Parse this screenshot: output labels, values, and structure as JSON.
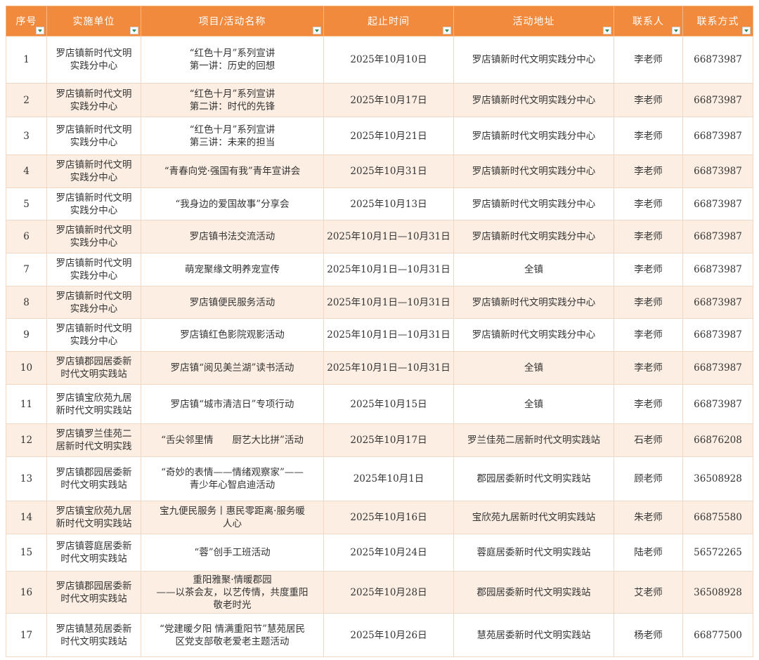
{
  "colors": {
    "header": "#F28A3E",
    "stripe": "#FCEEE3",
    "filter_arrow": "#2E8B57"
  },
  "columns": [
    "序号",
    "实施单位",
    "项目/活动名称",
    "起止时间",
    "活动地址",
    "联系人",
    "联系方式"
  ],
  "rows": [
    {
      "no": "1",
      "unit": "罗店镇新时代文明\n实践分中心",
      "name": "“红色十月”系列宣讲\n第一讲：历史的回想",
      "time": "2025年10月10日",
      "addr": "罗店镇新时代文明实践分中心",
      "contact": "李老师",
      "phone": "66873987"
    },
    {
      "no": "2",
      "unit": "罗店镇新时代文明\n实践分中心",
      "name": "“红色十月”系列宣讲\n第二讲：时代的先锋",
      "time": "2025年10月17日",
      "addr": "罗店镇新时代文明实践分中心",
      "contact": "李老师",
      "phone": "66873987"
    },
    {
      "no": "3",
      "unit": "罗店镇新时代文明\n实践分中心",
      "name": "“红色十月”系列宣讲\n第三讲：未来的担当",
      "time": "2025年10月21日",
      "addr": "罗店镇新时代文明实践分中心",
      "contact": "李老师",
      "phone": "66873987"
    },
    {
      "no": "4",
      "unit": "罗店镇新时代文明\n实践分中心",
      "name": "“青春向党·强国有我”青年宣讲会",
      "time": "2025年10月31日",
      "addr": "罗店镇新时代文明实践分中心",
      "contact": "李老师",
      "phone": "66873987"
    },
    {
      "no": "5",
      "unit": "罗店镇新时代文明\n实践分中心",
      "name": "“我身边的爱国故事”分享会",
      "time": "2025年10月13日",
      "addr": "罗店镇新时代文明实践分中心",
      "contact": "李老师",
      "phone": "66873987"
    },
    {
      "no": "6",
      "unit": "罗店镇新时代文明\n实践分中心",
      "name": "罗店镇书法交流活动",
      "time": "2025年10月1日—10月31日",
      "addr": "罗店镇新时代文明实践分中心",
      "contact": "李老师",
      "phone": "66873987"
    },
    {
      "no": "7",
      "unit": "罗店镇新时代文明\n实践分中心",
      "name": "萌宠聚缘文明养宠宣传",
      "time": "2025年10月1日—10月31日",
      "addr": "全镇",
      "contact": "李老师",
      "phone": "66873987"
    },
    {
      "no": "8",
      "unit": "罗店镇新时代文明\n实践分中心",
      "name": "罗店镇便民服务活动",
      "time": "2025年10月1日—10月31日",
      "addr": "罗店镇新时代文明实践分中心",
      "contact": "李老师",
      "phone": "66873987"
    },
    {
      "no": "9",
      "unit": "罗店镇新时代文明\n实践分中心",
      "name": "罗店镇红色影院观影活动",
      "time": "2025年10月1日—10月31日",
      "addr": "罗店镇新时代文明实践分中心",
      "contact": "李老师",
      "phone": "66873987"
    },
    {
      "no": "10",
      "unit": "罗店镇郡园居委新\n时代文明实践站",
      "name": "罗店镇“阅见美兰湖”读书活动",
      "time": "2025年10月1日—10月31日",
      "addr": "全镇",
      "contact": "李老师",
      "phone": "66873987"
    },
    {
      "no": "11",
      "unit": "罗店镇宝欣苑九居\n新时代文明实践站",
      "name": "罗店镇“城市清洁日”专项行动",
      "time": "2025年10月15日",
      "addr": "全镇",
      "contact": "李老师",
      "phone": "66873987"
    },
    {
      "no": "12",
      "unit": "罗店镇罗兰佳苑二\n居新时代文明实践\n站",
      "name": "“舌尖邻里情　　厨艺大比拼”活动",
      "time": "2025年10月17日",
      "addr": "罗兰佳苑二居新时代文明实践站",
      "contact": "石老师",
      "phone": "66876208"
    },
    {
      "no": "13",
      "unit": "罗店镇郡园居委新\n时代文明实践站",
      "name": "“奇妙的表情——情绪观察家”——\n青少年心智启迪活动",
      "time": "2025年10月1日",
      "addr": "郡园居委新时代文明实践站",
      "contact": "顾老师",
      "phone": "36508928"
    },
    {
      "no": "14",
      "unit": "罗店镇宝欣苑九居\n新时代文明实践站",
      "name": "宝九便民服务丨惠民零距离·服务暖\n人心",
      "time": "2025年10月16日",
      "addr": "宝欣苑九居新时代文明实践站",
      "contact": "朱老师",
      "phone": "66875580"
    },
    {
      "no": "15",
      "unit": "罗店镇蓉庭居委新\n时代文明实践站",
      "name": "“蓉”创手工班活动",
      "time": "2025年10月24日",
      "addr": "蓉庭居委新时代文明实践站",
      "contact": "陆老师",
      "phone": "56572265"
    },
    {
      "no": "16",
      "unit": "罗店镇郡园居委新\n时代文明实践站",
      "name": "重阳雅聚·情暖郡园\n——以茶会友，以艺传情，共度重阳\n敬老时光",
      "time": "2025年10月28日",
      "addr": "郡园居委新时代文明实践站",
      "contact": "艾老师",
      "phone": "36508928"
    },
    {
      "no": "17",
      "unit": "罗店镇慧苑居委新\n时代文明实践站",
      "name": "“党建暖夕阳 情满重阳节”慧苑居民\n区党支部敬老爱老主题活动",
      "time": "2025年10月26日",
      "addr": "慧苑居委新时代文明实践站",
      "contact": "杨老师",
      "phone": "66877500"
    }
  ]
}
